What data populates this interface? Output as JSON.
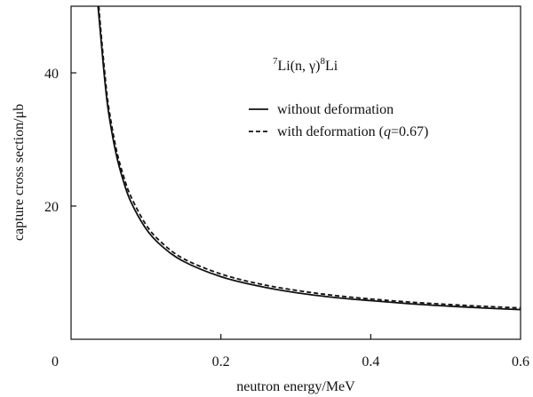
{
  "chart_data": {
    "type": "line",
    "title": {
      "pre_sup": "7",
      "main": "Li(n, γ)",
      "post_sup": "8",
      "tail": "Li"
    },
    "xlabel": "neutron energy/MeV",
    "ylabel": "capture cross section/μb",
    "xlim": [
      0,
      0.6
    ],
    "ylim": [
      0,
      50
    ],
    "x_ticks": [
      {
        "value": 0,
        "label": "0"
      },
      {
        "value": 0.2,
        "label": "0.2"
      },
      {
        "value": 0.4,
        "label": "0.4"
      },
      {
        "value": 0.6,
        "label": "0.6"
      }
    ],
    "y_ticks": [
      {
        "value": 20,
        "label": "20"
      },
      {
        "value": 40,
        "label": "40"
      }
    ],
    "grid": false,
    "legend_position": "top-right",
    "series": [
      {
        "name": "without deformation",
        "style": "solid",
        "color": "#111111",
        "x": [
          0.036,
          0.04,
          0.045,
          0.05,
          0.06,
          0.07,
          0.08,
          0.1,
          0.12,
          0.15,
          0.2,
          0.25,
          0.3,
          0.35,
          0.4,
          0.45,
          0.5,
          0.55,
          0.6
        ],
        "y": [
          50.0,
          45.0,
          38.9,
          34.1,
          27.9,
          23.7,
          20.6,
          16.6,
          14.1,
          11.7,
          9.4,
          8.0,
          7.0,
          6.3,
          5.8,
          5.35,
          5.0,
          4.7,
          4.45
        ]
      },
      {
        "name": "with deformation",
        "style": "dashed",
        "color": "#111111",
        "x": [
          0.037,
          0.04,
          0.045,
          0.05,
          0.06,
          0.07,
          0.08,
          0.1,
          0.12,
          0.15,
          0.2,
          0.25,
          0.3,
          0.35,
          0.4,
          0.45,
          0.5,
          0.55,
          0.6
        ],
        "y": [
          50.0,
          46.0,
          40.0,
          35.0,
          28.7,
          24.5,
          21.4,
          17.2,
          14.6,
          12.1,
          9.8,
          8.35,
          7.35,
          6.6,
          6.05,
          5.6,
          5.25,
          4.95,
          4.7
        ]
      }
    ],
    "legend": {
      "entries": [
        {
          "label": "without deformation"
        },
        {
          "label_pre": "with deformation (",
          "label_italic": "q",
          "label_post": "=0.67)"
        }
      ]
    }
  }
}
